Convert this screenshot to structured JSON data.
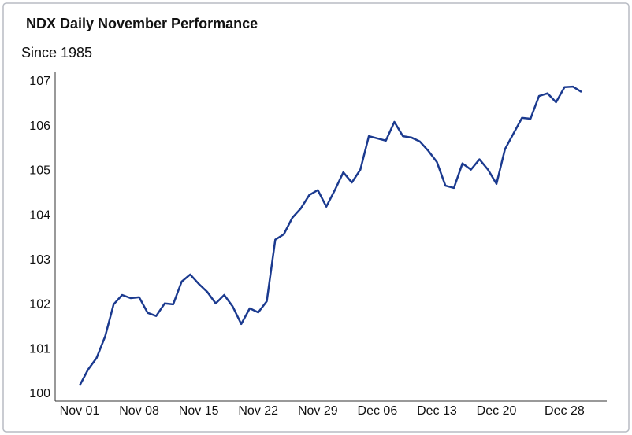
{
  "chart_data": {
    "type": "line",
    "title": "NDX Daily November Performance",
    "subtitle": "Since 1985",
    "categories": [
      "Nov 01",
      null,
      null,
      null,
      null,
      null,
      null,
      "Nov 08",
      null,
      null,
      null,
      null,
      null,
      null,
      "Nov 15",
      null,
      null,
      null,
      null,
      null,
      null,
      "Nov 22",
      null,
      null,
      null,
      null,
      null,
      null,
      "Nov 29",
      null,
      null,
      null,
      null,
      null,
      null,
      "Dec 06",
      null,
      null,
      null,
      null,
      null,
      null,
      "Dec 13",
      null,
      null,
      null,
      null,
      null,
      null,
      "Dec 20",
      null,
      null,
      null,
      null,
      null,
      null,
      null,
      "Dec 28",
      null,
      null
    ],
    "values": [
      100.19,
      100.55,
      100.81,
      101.29,
      102.01,
      102.22,
      102.15,
      102.17,
      101.82,
      101.75,
      102.03,
      102.01,
      102.52,
      102.68,
      102.47,
      102.29,
      102.03,
      102.22,
      101.96,
      101.57,
      101.92,
      101.83,
      102.08,
      103.46,
      103.58,
      103.95,
      104.16,
      104.46,
      104.57,
      104.2,
      104.57,
      104.97,
      104.74,
      105.03,
      105.78,
      105.73,
      105.68,
      106.1,
      105.78,
      105.75,
      105.66,
      105.45,
      105.2,
      104.67,
      104.62,
      105.17,
      105.03,
      105.26,
      105.03,
      104.71,
      105.49,
      105.84,
      106.19,
      106.17,
      106.68,
      106.74,
      106.54,
      106.88,
      106.89,
      106.77
    ],
    "color": "#1b3a8f",
    "ylim": [
      99.84,
      107.21
    ],
    "yticks": [
      100,
      101,
      102,
      103,
      104,
      105,
      106,
      107
    ],
    "grid": false
  }
}
